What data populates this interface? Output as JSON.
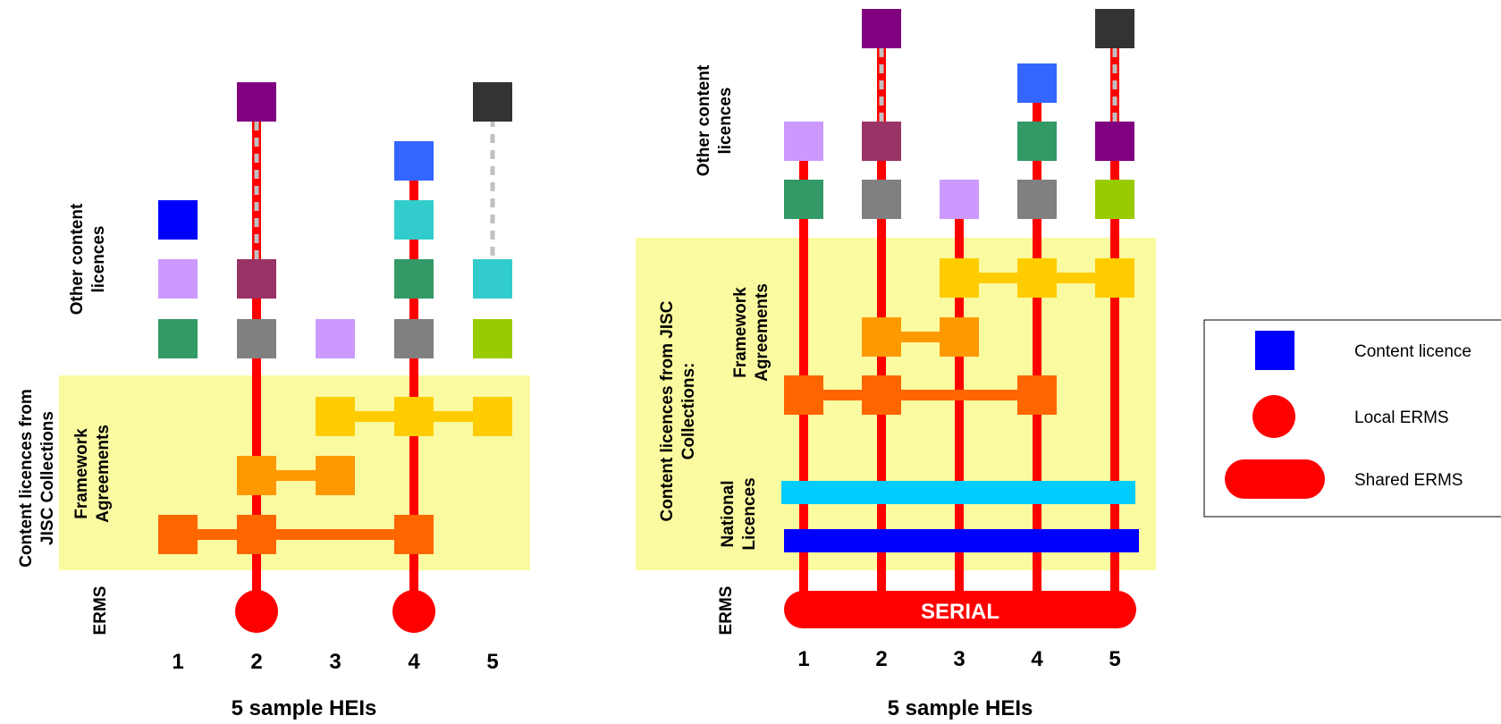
{
  "colors": {
    "band": "#fafaa0",
    "ermsRed": "#ff0000",
    "frameworkLink": "#ff6600",
    "frameworkLink2": "#ff9900",
    "frameworkLink3": "#ffcc00",
    "nationalLicence1": "#00ccff",
    "nationalLicence2": "#0000ff",
    "dashed": "#c0c0c0"
  },
  "left": {
    "hei_numbers": [
      "1",
      "2",
      "3",
      "4",
      "5"
    ],
    "xlabel": "5 sample HEIs",
    "label_other_line1": "Other content",
    "label_other_line2": "licences",
    "label_jisc_line1": "Content licences from",
    "label_jisc_line2": "JISC Collections",
    "label_framework_line1": "Framework",
    "label_framework_line2": "Agreements",
    "label_erms": "ERMS",
    "licences": [
      {
        "hei": 1,
        "level": 1,
        "color": "#339966"
      },
      {
        "hei": 1,
        "level": 2,
        "color": "#cc99ff"
      },
      {
        "hei": 1,
        "level": 3,
        "color": "#0000ff"
      },
      {
        "hei": 2,
        "level": 1,
        "color": "#808080"
      },
      {
        "hei": 2,
        "level": 2,
        "color": "#993366"
      },
      {
        "hei": 2,
        "level": 6,
        "color": "#800080"
      },
      {
        "hei": 3,
        "level": 1,
        "color": "#cc99ff"
      },
      {
        "hei": 4,
        "level": 1,
        "color": "#808080"
      },
      {
        "hei": 4,
        "level": 2,
        "color": "#339966"
      },
      {
        "hei": 4,
        "level": 3,
        "color": "#33cccc"
      },
      {
        "hei": 4,
        "level": 4,
        "color": "#3366ff"
      },
      {
        "hei": 5,
        "level": 1,
        "color": "#99cc00"
      },
      {
        "hei": 5,
        "level": 2,
        "color": "#33cccc"
      },
      {
        "hei": 5,
        "level": 6,
        "color": "#333333"
      }
    ],
    "frameworks": [
      {
        "color": "#ffcc00",
        "heis": [
          3,
          4,
          5
        ]
      },
      {
        "color": "#ff9900",
        "heis": [
          2,
          3
        ]
      },
      {
        "color": "#ff6600",
        "heis": [
          1,
          2,
          4
        ]
      }
    ],
    "local_erms_heis": [
      2,
      4
    ]
  },
  "right": {
    "hei_numbers": [
      "1",
      "2",
      "3",
      "4",
      "5"
    ],
    "xlabel": "5 sample HEIs",
    "label_other_line1": "Other content",
    "label_other_line2": "licences",
    "label_jisc_line1": "Content licences from JISC",
    "label_jisc_line2": "Collections:",
    "label_framework_line1": "Framework",
    "label_framework_line2": "Agreements",
    "label_national_line1": "National",
    "label_national_line2": "Licences",
    "label_erms": "ERMS",
    "serial_label": "SERIAL",
    "licences": [
      {
        "hei": 1,
        "level": 1,
        "color": "#339966"
      },
      {
        "hei": 1,
        "level": 2,
        "color": "#cc99ff"
      },
      {
        "hei": 2,
        "level": 1,
        "color": "#808080"
      },
      {
        "hei": 2,
        "level": 2,
        "color": "#993366"
      },
      {
        "hei": 2,
        "level": 4,
        "color": "#800080"
      },
      {
        "hei": 3,
        "level": 1,
        "color": "#cc99ff"
      },
      {
        "hei": 4,
        "level": 1,
        "color": "#808080"
      },
      {
        "hei": 4,
        "level": 2,
        "color": "#339966"
      },
      {
        "hei": 4,
        "level": 3,
        "color": "#3366ff"
      },
      {
        "hei": 5,
        "level": 1,
        "color": "#99cc00"
      },
      {
        "hei": 5,
        "level": 2,
        "color": "#800080"
      },
      {
        "hei": 5,
        "level": 4,
        "color": "#333333"
      }
    ],
    "frameworks": [
      {
        "color": "#ffcc00",
        "heis": [
          3,
          4,
          5
        ]
      },
      {
        "color": "#ff9900",
        "heis": [
          2,
          3
        ]
      },
      {
        "color": "#ff6600",
        "heis": [
          1,
          2,
          4
        ]
      }
    ],
    "national_licences": [
      {
        "color": "#00ccff"
      },
      {
        "color": "#0000ff"
      }
    ]
  },
  "legend": {
    "content_licence": "Content licence",
    "local_erms": "Local ERMS",
    "shared_erms": "Shared ERMS",
    "square_color": "#0000ff",
    "erms_color": "#ff0000"
  }
}
